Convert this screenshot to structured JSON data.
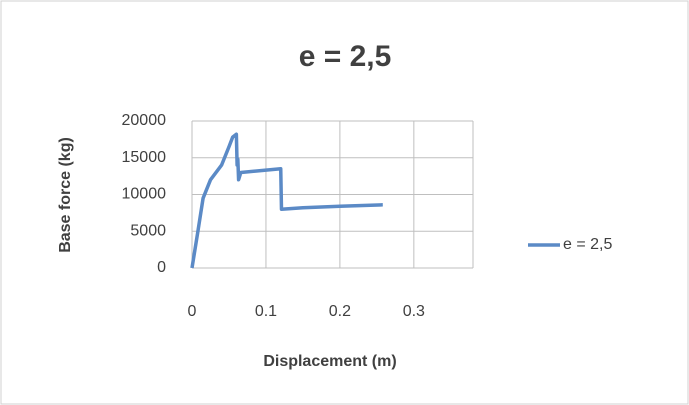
{
  "chart_data": {
    "type": "line",
    "title": "e = 2,5",
    "x_label": "Displacement (m)",
    "y_label": "Base force (kg)",
    "x": [
      0,
      0.008,
      0.015,
      0.025,
      0.04,
      0.05,
      0.055,
      0.06,
      0.061,
      0.062,
      0.063,
      0.066,
      0.12,
      0.121,
      0.15,
      0.2,
      0.258
    ],
    "series": [
      {
        "name": "e = 2,5",
        "color": "#5b8ac6",
        "values": [
          0,
          5000,
          9500,
          12000,
          14000,
          16500,
          17800,
          18200,
          14000,
          14800,
          12000,
          13000,
          13500,
          8000,
          8200,
          8400,
          8600
        ]
      }
    ],
    "xlim": [
      0,
      0.38
    ],
    "ylim": [
      0,
      20000
    ],
    "xticks": [
      0,
      0.1,
      0.2,
      0.3
    ],
    "yticks": [
      0,
      5000,
      10000,
      15000,
      20000
    ],
    "grid": true,
    "legend": "right"
  }
}
